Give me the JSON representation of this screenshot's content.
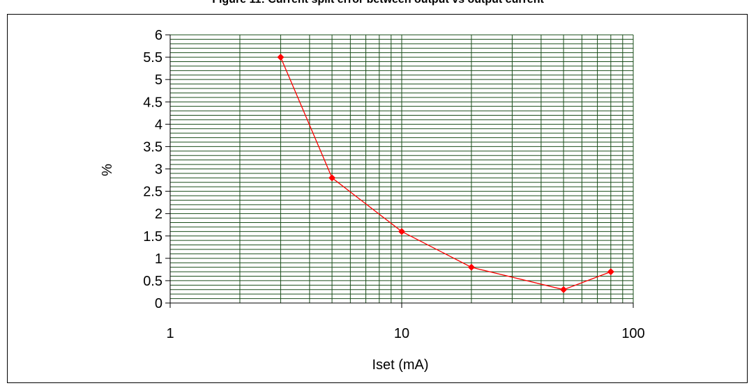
{
  "title": "Figure 11: Current split error between output vs output current",
  "chart_data": {
    "type": "line",
    "title": "Figure 11: Current split error between output vs output current",
    "xlabel": "Iset (mA)",
    "ylabel": "%",
    "x_scale": "log",
    "xlim": [
      1,
      100
    ],
    "ylim": [
      0,
      6
    ],
    "x_ticks": [
      "1",
      "10",
      "100"
    ],
    "y_ticks": [
      "0",
      "0.5",
      "1",
      "1.5",
      "2",
      "2.5",
      "3",
      "3.5",
      "4",
      "4.5",
      "5",
      "5.5",
      "6"
    ],
    "grid": true,
    "series": [
      {
        "x": [
          3,
          5,
          10,
          20,
          50,
          80
        ],
        "y": [
          5.5,
          2.8,
          1.6,
          0.8,
          0.3,
          0.7
        ]
      }
    ],
    "colors": {
      "grid": "#1a4d1a",
      "series": "#ff0000",
      "tick_text": "#000000"
    }
  }
}
